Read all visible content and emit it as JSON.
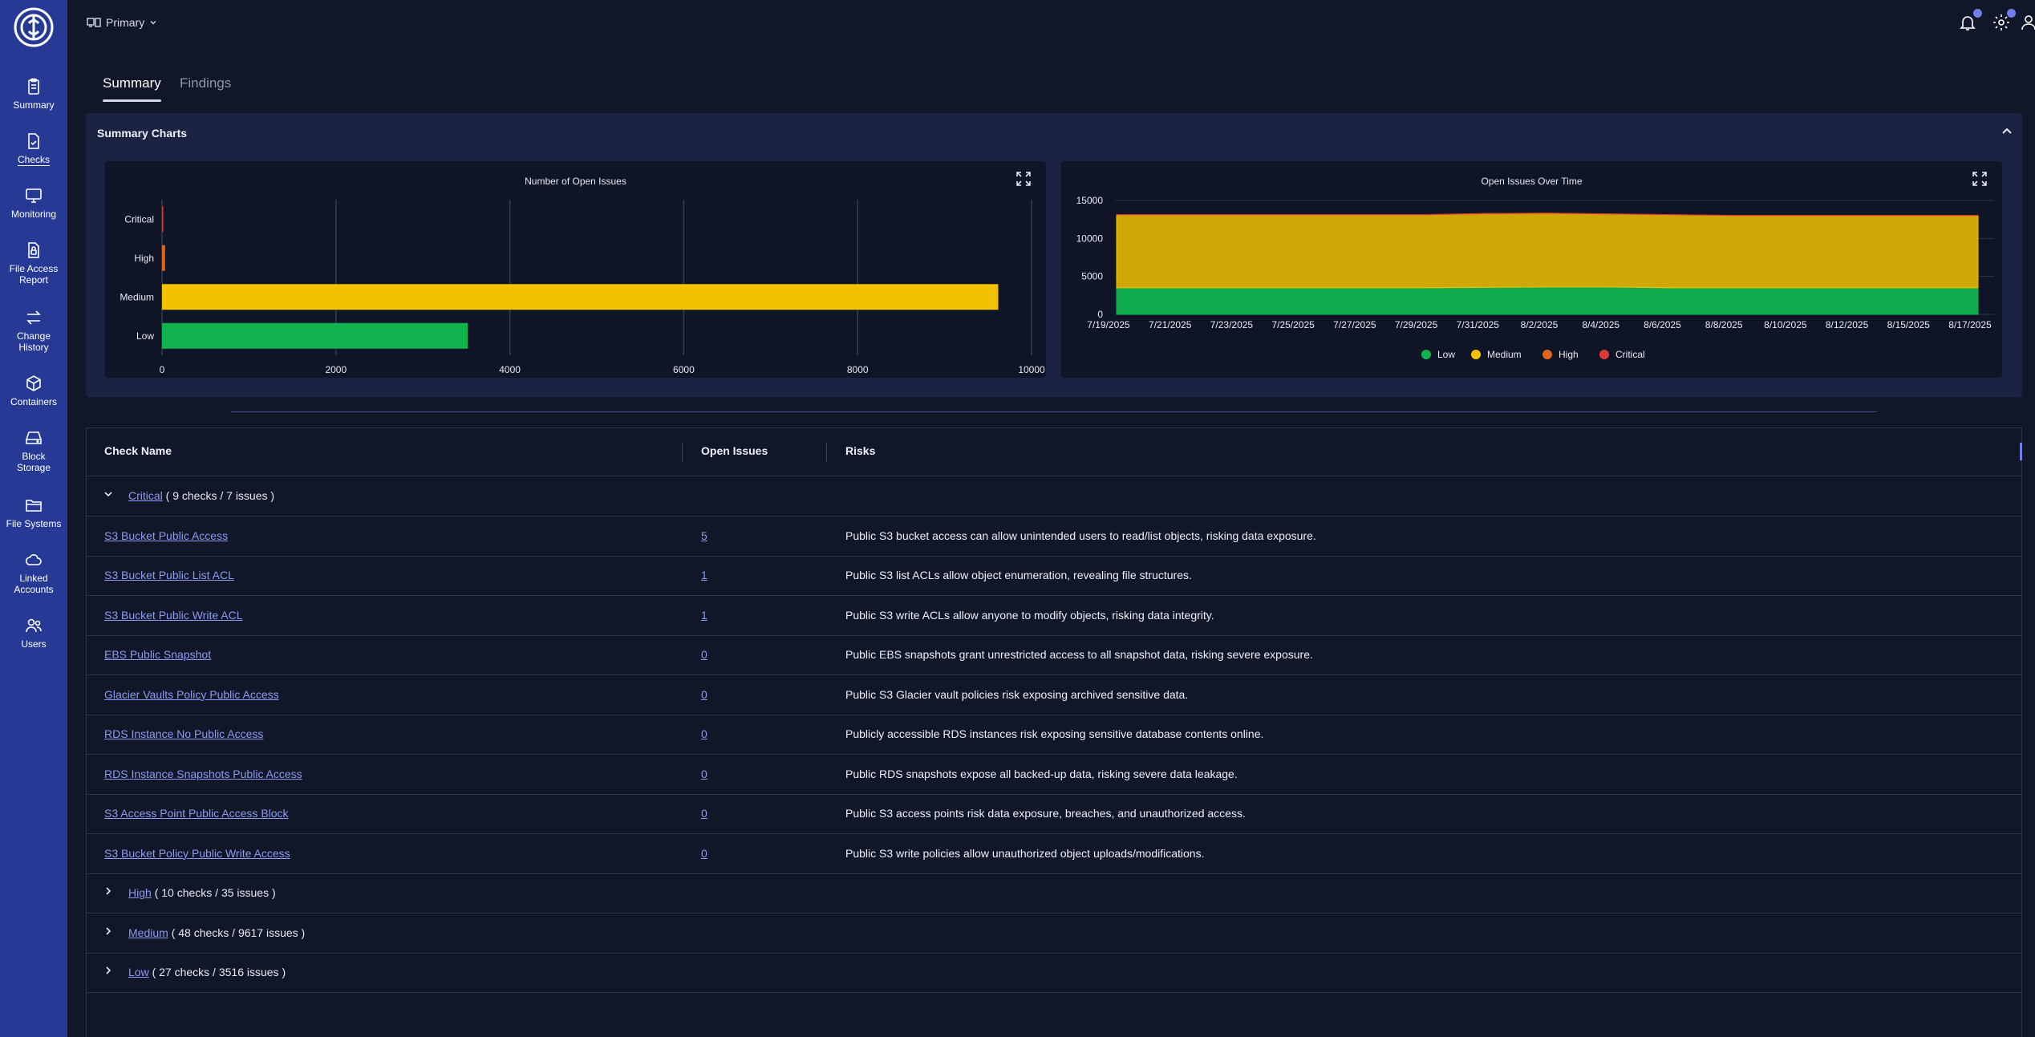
{
  "sidebar": {
    "items": [
      {
        "label": "Summary",
        "icon": "clipboard-icon"
      },
      {
        "label": "Checks",
        "icon": "file-check-icon",
        "active": true
      },
      {
        "label": "Monitoring",
        "icon": "monitor-icon"
      },
      {
        "label": "File Access Report",
        "icon": "file-lock-icon"
      },
      {
        "label": "Change History",
        "icon": "arrows-swap-icon"
      },
      {
        "label": "Containers",
        "icon": "cube-icon"
      },
      {
        "label": "Block Storage",
        "icon": "hard-drive-icon"
      },
      {
        "label": "File Systems",
        "icon": "folder-icon"
      },
      {
        "label": "Linked Accounts",
        "icon": "cloud-icon"
      },
      {
        "label": "Users",
        "icon": "users-icon"
      }
    ]
  },
  "header": {
    "workspace": "Primary"
  },
  "tabs": [
    {
      "label": "Summary",
      "active": true
    },
    {
      "label": "Findings",
      "active": false
    }
  ],
  "panel": {
    "title": "Summary Charts"
  },
  "colors": {
    "low": "#10b24e",
    "medium": "#f2c200",
    "high": "#e0661b",
    "critical": "#d93a3a"
  },
  "chart_data": [
    {
      "type": "bar",
      "title": "Number of Open Issues",
      "orientation": "horizontal",
      "categories": [
        "Critical",
        "High",
        "Medium",
        "Low"
      ],
      "values": [
        7,
        35,
        9617,
        3516
      ],
      "xlim": [
        0,
        10000
      ],
      "xticks": [
        "0",
        "2000",
        "4000",
        "6000",
        "8000",
        "10000"
      ],
      "grid": true
    },
    {
      "type": "area",
      "title": "Open Issues Over Time",
      "stacked": true,
      "x": [
        "7/19/2025",
        "7/21/2025",
        "7/23/2025",
        "7/25/2025",
        "7/27/2025",
        "7/29/2025",
        "7/31/2025",
        "8/2/2025",
        "8/4/2025",
        "8/6/2025",
        "8/8/2025",
        "8/10/2025",
        "8/12/2025",
        "8/15/2025",
        "8/17/2025"
      ],
      "series": [
        {
          "name": "Low",
          "values": [
            3500,
            3500,
            3500,
            3500,
            3500,
            3500,
            3550,
            3600,
            3600,
            3500,
            3500,
            3500,
            3500,
            3500,
            3500
          ]
        },
        {
          "name": "Medium",
          "values": [
            9600,
            9600,
            9600,
            9600,
            9600,
            9600,
            9700,
            9700,
            9600,
            9600,
            9500,
            9500,
            9500,
            9500,
            9500
          ]
        },
        {
          "name": "High",
          "values": [
            35,
            35,
            35,
            35,
            35,
            35,
            35,
            35,
            35,
            35,
            35,
            35,
            35,
            35,
            35
          ]
        },
        {
          "name": "Critical",
          "values": [
            7,
            7,
            7,
            7,
            7,
            7,
            7,
            7,
            7,
            7,
            7,
            7,
            7,
            7,
            7
          ]
        }
      ],
      "ylim": [
        0,
        15000
      ],
      "yticks": [
        "0",
        "5000",
        "10000",
        "15000"
      ],
      "legend": "bottom"
    }
  ],
  "table": {
    "headers": {
      "name": "Check Name",
      "issues": "Open Issues",
      "risks": "Risks"
    },
    "groups": [
      {
        "label": "Critical",
        "summary": "( 9 checks / 7 issues )",
        "expanded": true
      },
      {
        "label": "High",
        "summary": "( 10 checks / 35 issues )",
        "expanded": false
      },
      {
        "label": "Medium",
        "summary": "( 48 checks / 9617 issues )",
        "expanded": false
      },
      {
        "label": "Low",
        "summary": "( 27 checks / 3516 issues )",
        "expanded": false
      }
    ],
    "rows": [
      {
        "name": "S3 Bucket Public Access",
        "count": "5",
        "risk": "Public S3 bucket access can allow unintended users to read/list objects, risking data exposure."
      },
      {
        "name": "S3 Bucket Public List ACL",
        "count": "1",
        "risk": "Public S3 list ACLs allow object enumeration, revealing file structures."
      },
      {
        "name": "S3 Bucket Public Write ACL",
        "count": "1",
        "risk": "Public S3 write ACLs allow anyone to modify objects, risking data integrity."
      },
      {
        "name": "EBS Public Snapshot",
        "count": "0",
        "risk": "Public EBS snapshots grant unrestricted access to all snapshot data, risking severe exposure."
      },
      {
        "name": "Glacier Vaults Policy Public Access",
        "count": "0",
        "risk": "Public S3 Glacier vault policies risk exposing archived sensitive data."
      },
      {
        "name": "RDS Instance No Public Access",
        "count": "0",
        "risk": "Publicly accessible RDS instances risk exposing sensitive database contents online."
      },
      {
        "name": "RDS Instance Snapshots Public Access",
        "count": "0",
        "risk": "Public RDS snapshots expose all backed-up data, risking severe data leakage."
      },
      {
        "name": "S3 Access Point Public Access Block",
        "count": "0",
        "risk": "Public S3 access points risk data exposure, breaches, and unauthorized access."
      },
      {
        "name": "S3 Bucket Policy Public Write Access",
        "count": "0",
        "risk": "Public S3 write policies allow unauthorized object uploads/modifications."
      }
    ]
  }
}
